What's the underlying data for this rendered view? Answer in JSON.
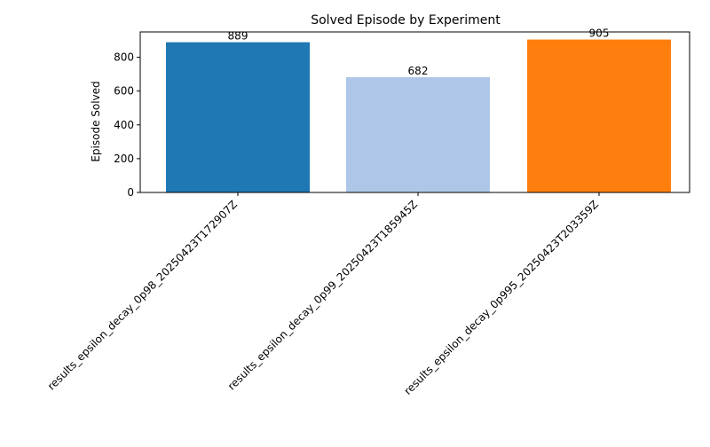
{
  "chart_data": {
    "type": "bar",
    "title": "Solved Episode by Experiment",
    "xlabel": "",
    "ylabel": "Episode Solved",
    "categories": [
      "results_epsilon_decay_0p98_20250423T172907Z",
      "results_epsilon_decay_0p99_20250423T185945Z",
      "results_epsilon_decay_0p995_20250423T203359Z"
    ],
    "values": [
      889,
      682,
      905
    ],
    "data_labels": [
      "889",
      "682",
      "905"
    ],
    "colors": [
      "#1f77b4",
      "#aec7e8",
      "#ff7f0e"
    ],
    "ylim": [
      0,
      950
    ],
    "yticks": [
      0,
      200,
      400,
      600,
      800
    ],
    "ytick_labels": [
      "0",
      "200",
      "400",
      "600",
      "800"
    ],
    "grid": false,
    "legend": "none"
  }
}
